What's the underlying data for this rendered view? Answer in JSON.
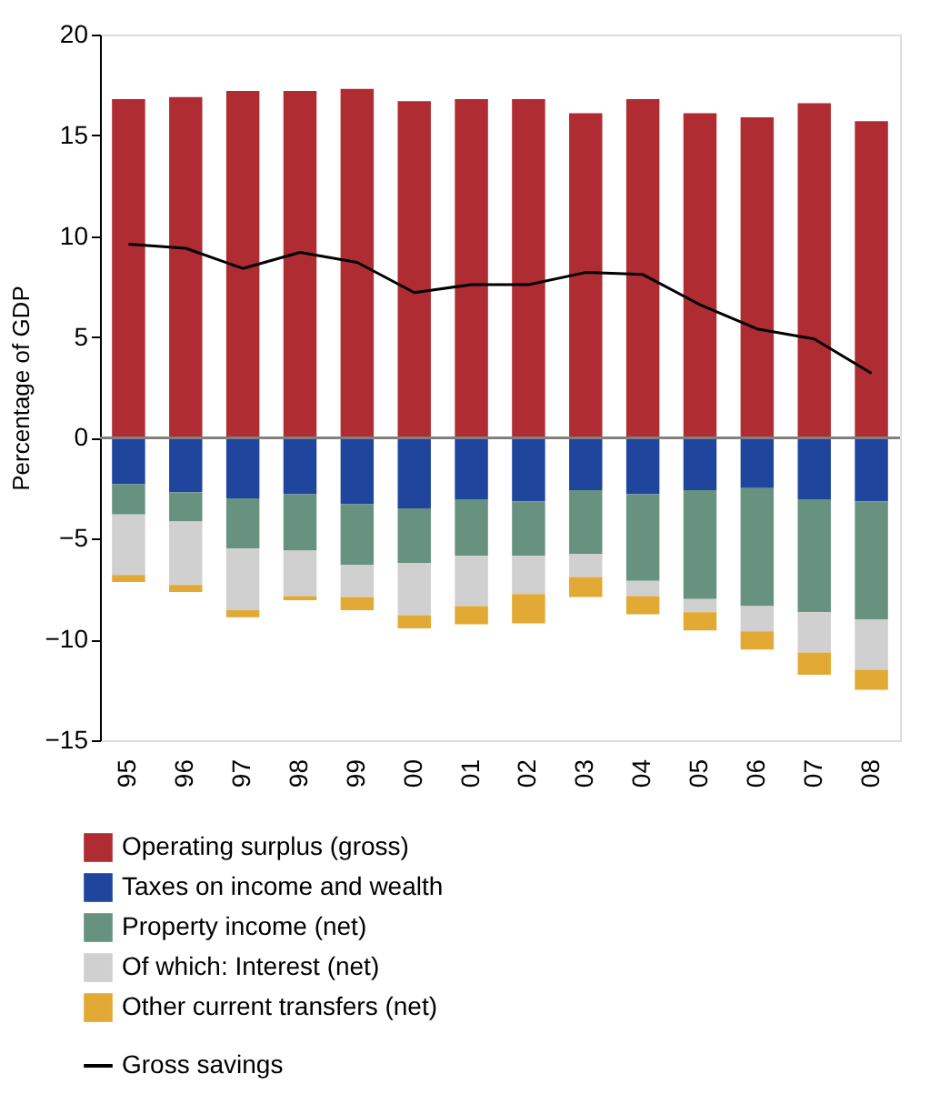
{
  "chart_data": {
    "type": "bar",
    "stacked": true,
    "ylabel": "Percentage of GDP",
    "categories": [
      "95",
      "96",
      "97",
      "98",
      "99",
      "00",
      "01",
      "02",
      "03",
      "04",
      "05",
      "06",
      "07",
      "08"
    ],
    "series": [
      {
        "name": "Operating surplus (gross)",
        "color": "#ae2c32",
        "values": [
          16.8,
          16.9,
          17.2,
          17.2,
          17.3,
          16.7,
          16.8,
          16.8,
          16.1,
          16.8,
          16.1,
          15.9,
          16.6,
          15.7
        ]
      },
      {
        "name": "Taxes on income and wealth",
        "color": "#1f469c",
        "values": [
          -2.3,
          -2.7,
          -3.0,
          -2.8,
          -3.3,
          -3.5,
          -3.05,
          -3.15,
          -2.6,
          -2.8,
          -2.6,
          -2.5,
          -3.05,
          -3.15
        ]
      },
      {
        "name": "Property income (net)",
        "color": "#679280",
        "values": [
          -1.5,
          -1.45,
          -2.5,
          -2.8,
          -3.0,
          -2.7,
          -2.8,
          -2.7,
          -3.15,
          -4.3,
          -5.4,
          -5.85,
          -5.6,
          -5.85
        ]
      },
      {
        "name": "Of which: Interest (net)",
        "color": "#d0d0d0",
        "values": [
          -3.0,
          -3.15,
          -3.05,
          -2.25,
          -1.6,
          -2.6,
          -2.5,
          -1.9,
          -1.15,
          -0.75,
          -0.65,
          -1.25,
          -2.0,
          -2.5
        ]
      },
      {
        "name": "Other current transfers (net)",
        "color": "#e2a935",
        "values": [
          -0.35,
          -0.35,
          -0.35,
          -0.2,
          -0.65,
          -0.65,
          -0.9,
          -1.45,
          -1.0,
          -0.9,
          -0.9,
          -0.9,
          -1.1,
          -1.0
        ]
      },
      {
        "name": "Gross savings",
        "type": "line",
        "color": "#000000",
        "values": [
          9.6,
          9.4,
          8.4,
          9.2,
          8.7,
          7.2,
          7.6,
          7.6,
          8.2,
          8.1,
          6.6,
          5.4,
          4.9,
          3.2
        ]
      }
    ],
    "ylim": [
      -15,
      20
    ],
    "yticks": [
      -15,
      -10,
      -5,
      0,
      5,
      10,
      15,
      20
    ],
    "grid": false,
    "legend": "bottom",
    "ref_lines": [
      {
        "axis": "y",
        "value": 0,
        "color": "#808080"
      }
    ]
  }
}
